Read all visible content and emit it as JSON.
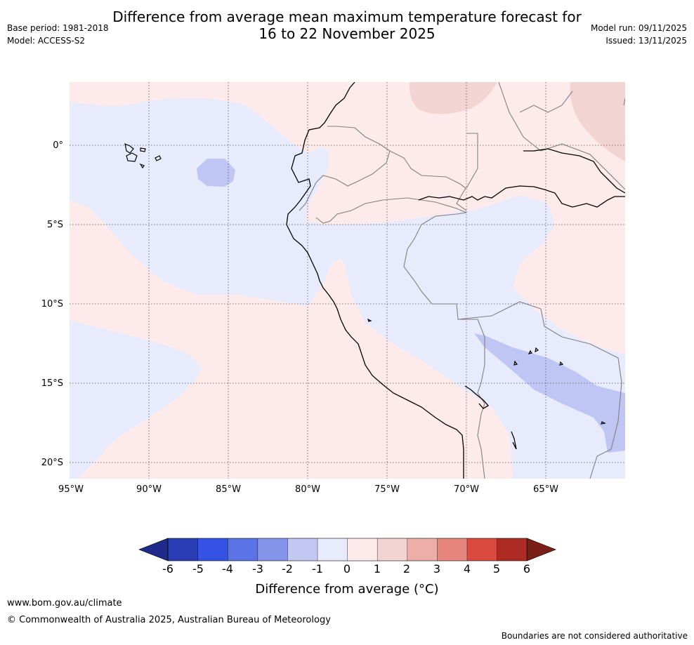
{
  "header": {
    "title_line1": "Difference from average mean maximum temperature forecast for",
    "title_line2": "16 to 22 November 2025",
    "base_period": "Base period: 1981-2018",
    "model": "Model: ACCESS-S2",
    "model_run": "Model run: 09/11/2025",
    "issued": "Issued: 13/11/2025"
  },
  "map": {
    "lat_labels": [
      "0°",
      "5°S",
      "10°S",
      "15°S",
      "20°S"
    ],
    "lon_labels": [
      "95°W",
      "90°W",
      "85°W",
      "80°W",
      "75°W",
      "70°W",
      "65°W"
    ],
    "colors": {
      "ocean_neutral_cool": "#e8ebfb",
      "warm_0_1": "#fcebea",
      "warm_1_2": "#f2d5d3",
      "cool_2_1": "#c0c6f3",
      "border": "#808080",
      "coast": "#000000",
      "grid": "#555555"
    }
  },
  "colorbar": {
    "ticks": [
      "-6",
      "-5",
      "-4",
      "-3",
      "-2",
      "-1",
      "0",
      "1",
      "2",
      "3",
      "4",
      "5",
      "6"
    ],
    "colors": [
      "#1f2a8c",
      "#2a3db5",
      "#3452e3",
      "#5a73e6",
      "#8495e9",
      "#c2c8f2",
      "#e8ebfb",
      "#fcebea",
      "#f2d5d3",
      "#eeaea8",
      "#e7867d",
      "#da4a3e",
      "#ad2b22",
      "#7a1e18"
    ],
    "label": "Difference from average (°C)"
  },
  "footer": {
    "url": "www.bom.gov.au/climate",
    "copyright": "© Commonwealth of Australia 2025, Australian Bureau of Meteorology",
    "disclaimer": "Boundaries are not considered authoritative"
  }
}
